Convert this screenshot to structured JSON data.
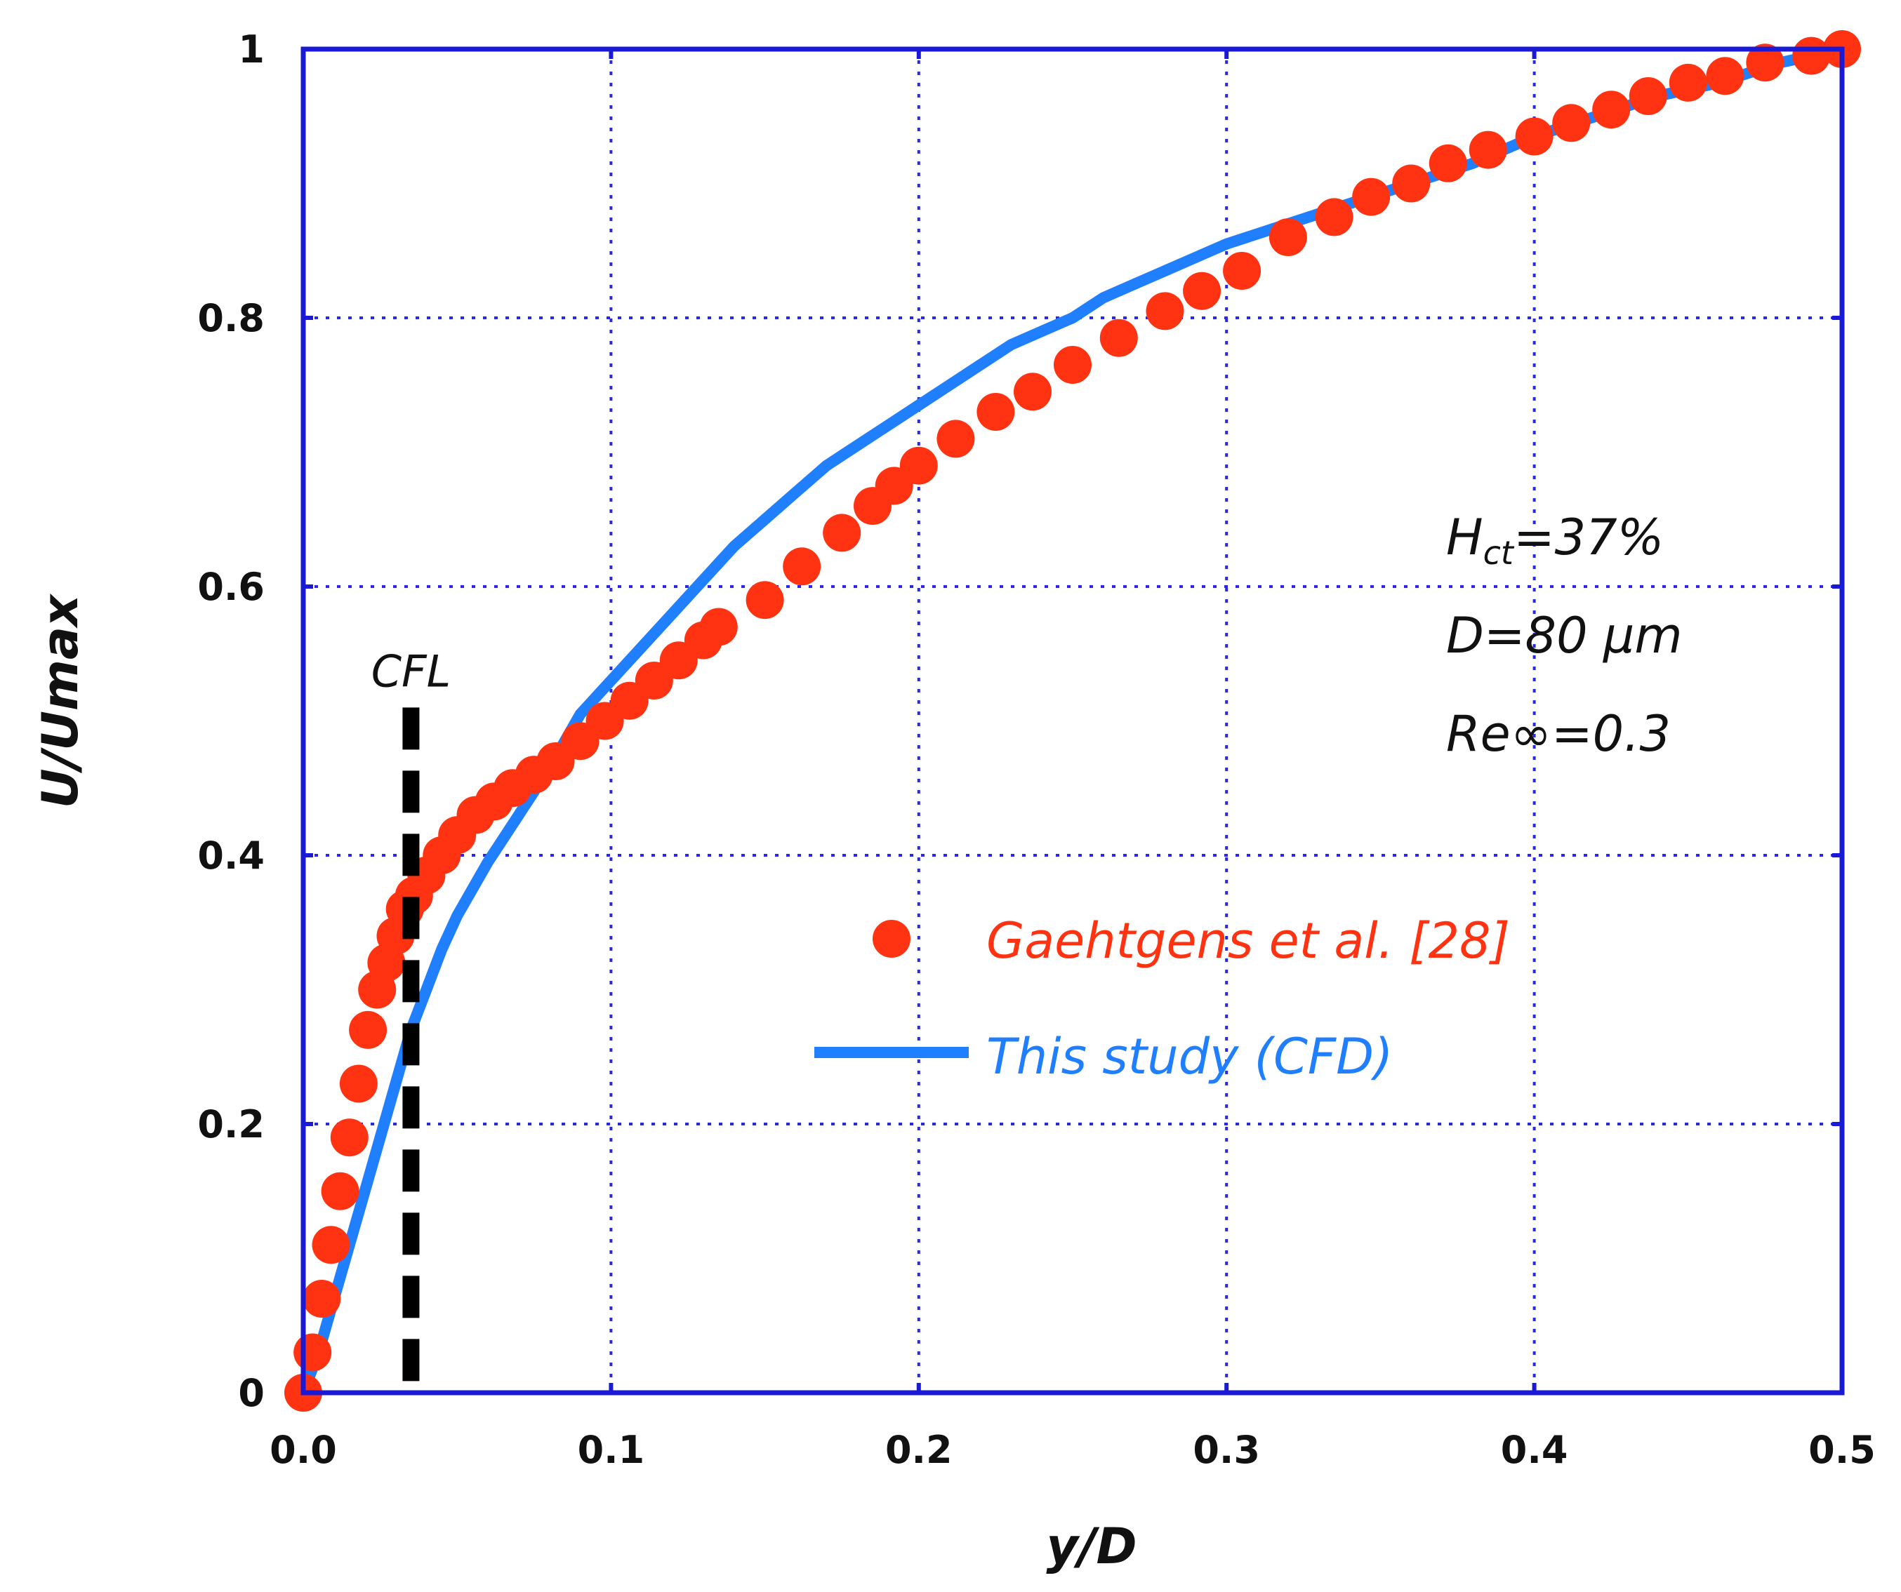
{
  "chart_data": {
    "type": "scatter",
    "xlabel": "y/D",
    "ylabel": "U/Umax",
    "xlim": [
      0,
      0.5
    ],
    "ylim": [
      0,
      1
    ],
    "xticks": [
      "0.0",
      "0.1",
      "0.2",
      "0.3",
      "0.4",
      "0.5"
    ],
    "yticks": [
      "0",
      "0.2",
      "0.4",
      "0.6",
      "0.8",
      "1"
    ],
    "grid": true,
    "colors": {
      "axis": "#1a1ad6",
      "grid": "#2a2ad9",
      "experiment": "#ff3311",
      "cfd": "#1f7fff",
      "cfl": "#000000"
    },
    "annotations": {
      "hct_main": "H",
      "hct_sub": "ct",
      "hct_value": "=37%",
      "diameter": "D=80 μm",
      "reynolds": "Re∞=0.3"
    },
    "cfl": {
      "label": "CFL",
      "x": 0.035,
      "y_top": 0.51
    },
    "legend": {
      "experiment_label": "Gaehtgens et al. [28]",
      "cfd_label": "This study (CFD)"
    },
    "series": [
      {
        "name": "Gaehtgens et al. [28]",
        "style": "markers",
        "x": [
          0.0,
          0.003,
          0.006,
          0.009,
          0.012,
          0.015,
          0.018,
          0.021,
          0.024,
          0.027,
          0.03,
          0.033,
          0.036,
          0.04,
          0.045,
          0.05,
          0.056,
          0.062,
          0.068,
          0.075,
          0.082,
          0.09,
          0.098,
          0.106,
          0.114,
          0.122,
          0.13,
          0.135,
          0.15,
          0.162,
          0.175,
          0.185,
          0.192,
          0.2,
          0.212,
          0.225,
          0.237,
          0.25,
          0.265,
          0.28,
          0.292,
          0.305,
          0.32,
          0.335,
          0.347,
          0.36,
          0.372,
          0.385,
          0.4,
          0.412,
          0.425,
          0.437,
          0.45,
          0.462,
          0.475,
          0.49,
          0.5
        ],
        "y": [
          0.0,
          0.03,
          0.07,
          0.11,
          0.15,
          0.19,
          0.23,
          0.27,
          0.3,
          0.32,
          0.34,
          0.36,
          0.37,
          0.385,
          0.4,
          0.415,
          0.43,
          0.44,
          0.45,
          0.46,
          0.47,
          0.485,
          0.5,
          0.515,
          0.53,
          0.545,
          0.56,
          0.57,
          0.59,
          0.615,
          0.64,
          0.66,
          0.675,
          0.69,
          0.71,
          0.73,
          0.745,
          0.765,
          0.785,
          0.805,
          0.82,
          0.835,
          0.86,
          0.875,
          0.89,
          0.9,
          0.915,
          0.925,
          0.935,
          0.945,
          0.955,
          0.965,
          0.975,
          0.98,
          0.99,
          0.995,
          1.0
        ]
      },
      {
        "name": "This study (CFD)",
        "style": "line",
        "x": [
          0.0,
          0.005,
          0.01,
          0.015,
          0.02,
          0.025,
          0.03,
          0.035,
          0.04,
          0.045,
          0.05,
          0.055,
          0.06,
          0.07,
          0.08,
          0.09,
          0.1,
          0.11,
          0.12,
          0.13,
          0.14,
          0.15,
          0.16,
          0.17,
          0.18,
          0.19,
          0.2,
          0.21,
          0.22,
          0.23,
          0.24,
          0.25,
          0.26,
          0.27,
          0.28,
          0.29,
          0.3,
          0.32,
          0.34,
          0.36,
          0.38,
          0.4,
          0.42,
          0.44,
          0.46,
          0.48,
          0.5
        ],
        "y": [
          0.0,
          0.03,
          0.07,
          0.11,
          0.15,
          0.19,
          0.23,
          0.27,
          0.3,
          0.33,
          0.355,
          0.375,
          0.395,
          0.43,
          0.465,
          0.505,
          0.53,
          0.555,
          0.58,
          0.605,
          0.63,
          0.65,
          0.67,
          0.69,
          0.705,
          0.72,
          0.735,
          0.75,
          0.765,
          0.78,
          0.79,
          0.8,
          0.815,
          0.825,
          0.835,
          0.845,
          0.855,
          0.87,
          0.885,
          0.9,
          0.915,
          0.935,
          0.95,
          0.965,
          0.975,
          0.99,
          1.0
        ]
      }
    ]
  }
}
